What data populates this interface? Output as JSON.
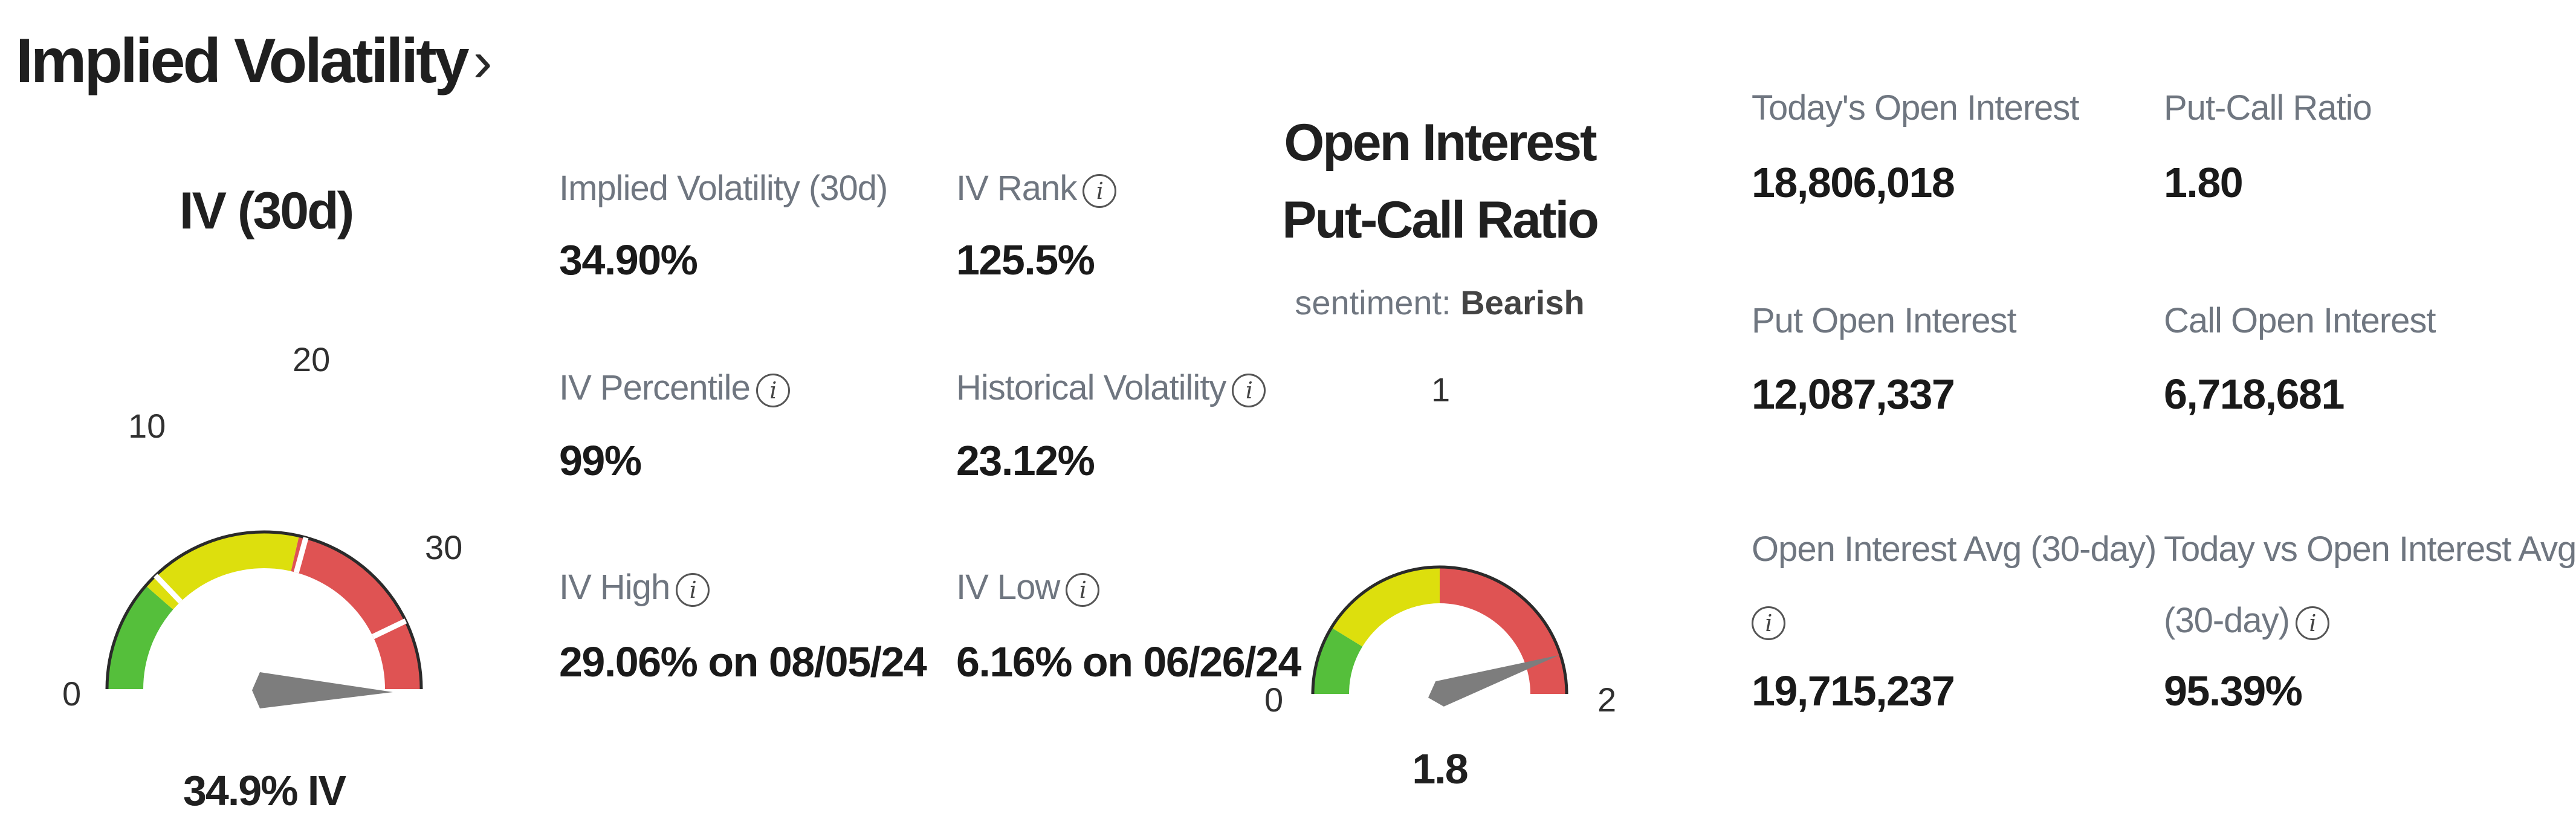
{
  "heading": {
    "title": "Implied Volatility",
    "chevron_icon": "chevron-right-icon"
  },
  "iv_gauge": {
    "title": "IV (30d)",
    "ticks": [
      "0",
      "10",
      "20",
      "30"
    ],
    "reading": "34.9% IV",
    "value": 34.9,
    "max": 35,
    "colors": {
      "green": "#55bf3b",
      "yellow": "#dddf0d",
      "red": "#df5353",
      "needle": "#7d7d7d"
    }
  },
  "iv_stats": [
    {
      "label": "Implied Volatility (30d)",
      "value": "34.90%",
      "info": false
    },
    {
      "label": "IV Rank",
      "value": "125.5%",
      "info": true
    },
    {
      "label": "IV Percentile",
      "value": "99%",
      "info": true
    },
    {
      "label": "Historical Volatility",
      "value": "23.12%",
      "info": true
    },
    {
      "label": "IV High",
      "value": "29.06% on 08/05/24",
      "info": true
    },
    {
      "label": "IV Low",
      "value": "6.16% on 06/26/24",
      "info": true
    }
  ],
  "pcr_gauge": {
    "title_line1": "Open Interest",
    "title_line2": "Put-Call Ratio",
    "sentiment_prefix": "sentiment:",
    "sentiment_value": "Bearish",
    "ticks": [
      "0",
      "1",
      "2"
    ],
    "reading": "1.8",
    "value": 1.8,
    "max": 2
  },
  "oi_stats": [
    {
      "label": "Today's Open Interest",
      "value": "18,806,018"
    },
    {
      "label": "Put-Call Ratio",
      "value": "1.80"
    },
    {
      "label": "Put Open Interest",
      "value": "12,087,337"
    },
    {
      "label": "Call Open Interest",
      "value": "6,718,681"
    },
    {
      "label": "Open Interest Avg (30-day)",
      "value": "19,715,237"
    },
    {
      "label": "Today vs Open Interest Avg (30-day)",
      "label_line1": "Today vs Open Interest Avg",
      "label_line2": "(30-day)",
      "value": "95.39%"
    }
  ],
  "info_glyph": "i"
}
